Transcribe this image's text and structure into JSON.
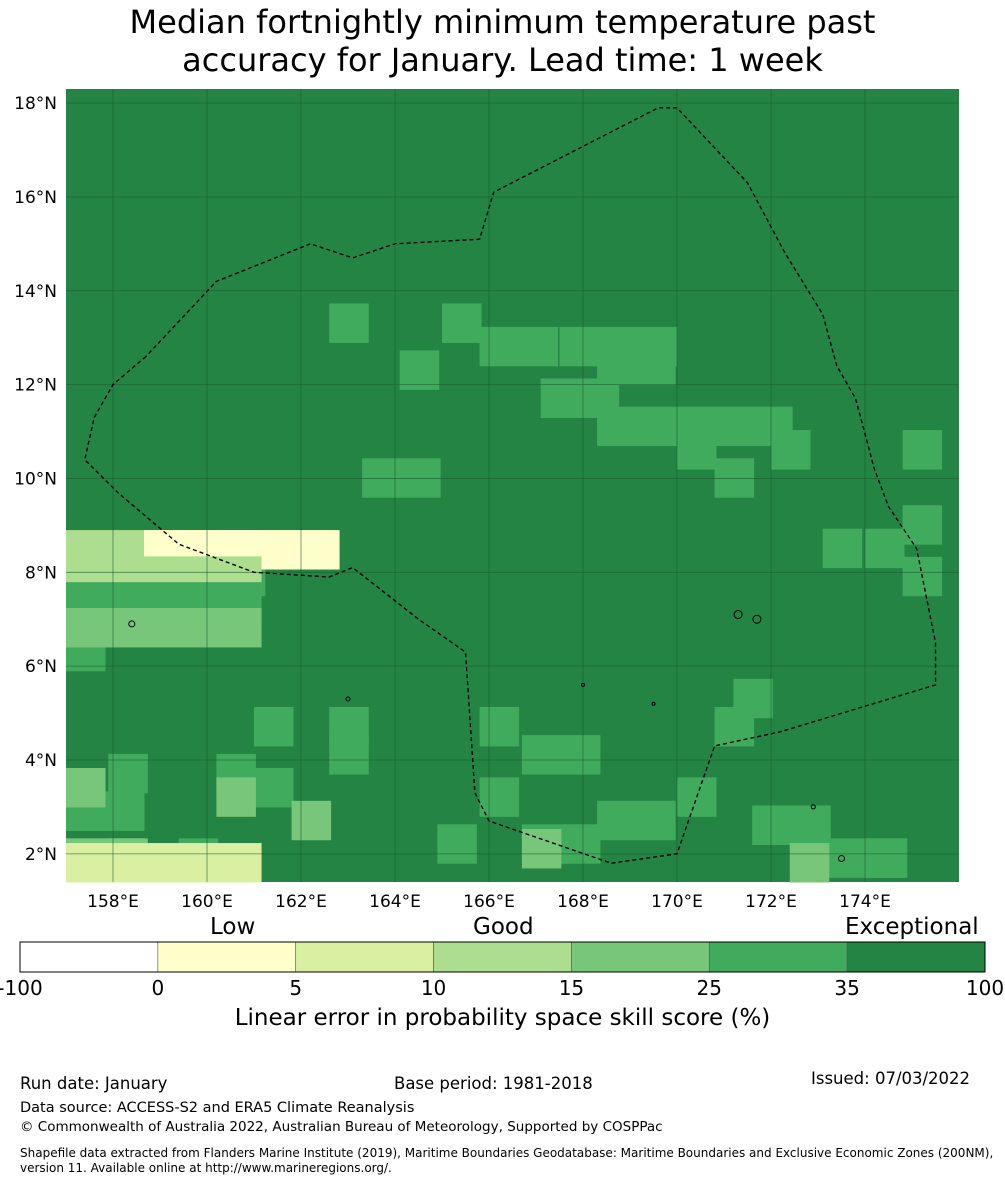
{
  "title_line1": "Median fortnightly minimum temperature past",
  "title_line2": "accuracy for January. Lead time: 1 week",
  "map": {
    "lon_range": [
      157,
      176
    ],
    "lat_range": [
      1.4,
      18.3
    ],
    "lon_ticks": [
      158,
      160,
      162,
      164,
      166,
      168,
      170,
      172,
      174
    ],
    "lon_tick_labels": [
      "158°E",
      "160°E",
      "162°E",
      "164°E",
      "166°E",
      "168°E",
      "170°E",
      "172°E",
      "174°E"
    ],
    "lat_ticks": [
      2,
      4,
      6,
      8,
      10,
      12,
      14,
      16,
      18
    ],
    "lat_tick_labels": [
      "2°N",
      "4°N",
      "6°N",
      "8°N",
      "10°N",
      "12°N",
      "14°N",
      "16°N",
      "18°N"
    ],
    "default_category": 6,
    "grid_cell_deg": 0.83,
    "cells": [
      [
        157,
        8.07,
        3,
        5
      ],
      [
        158.66,
        8.07,
        1,
        5
      ],
      [
        157,
        7.51,
        3,
        5
      ],
      [
        157,
        6.96,
        5,
        5
      ],
      [
        157,
        6.41,
        4,
        5
      ],
      [
        157,
        1.4,
        2,
        5
      ]
    ],
    "eez_boundary": [
      [
        158.7,
        12.6
      ],
      [
        158.0,
        12.0
      ],
      [
        157.6,
        11.3
      ],
      [
        157.4,
        10.4
      ],
      [
        158.1,
        9.7
      ],
      [
        159.4,
        8.6
      ],
      [
        161.0,
        8.0
      ],
      [
        162.6,
        7.9
      ],
      [
        163.1,
        8.1
      ],
      [
        164.5,
        7.0
      ],
      [
        165.5,
        6.3
      ],
      [
        165.7,
        3.3
      ],
      [
        166.0,
        2.7
      ],
      [
        168.6,
        1.8
      ],
      [
        170.0,
        2.0
      ],
      [
        170.8,
        4.3
      ],
      [
        172.2,
        4.6
      ],
      [
        175.5,
        5.6
      ],
      [
        175.5,
        6.5
      ],
      [
        175.1,
        8.5
      ],
      [
        174.5,
        9.4
      ],
      [
        174.2,
        10.2
      ],
      [
        173.8,
        11.7
      ],
      [
        173.4,
        12.4
      ],
      [
        173.1,
        13.5
      ],
      [
        172.3,
        14.8
      ],
      [
        171.5,
        16.3
      ],
      [
        170.0,
        17.9
      ],
      [
        169.6,
        17.9
      ],
      [
        166.1,
        16.1
      ],
      [
        165.8,
        15.1
      ],
      [
        164.0,
        15.0
      ],
      [
        163.1,
        14.7
      ],
      [
        162.2,
        15.0
      ],
      [
        160.2,
        14.2
      ],
      [
        158.7,
        12.6
      ]
    ]
  },
  "colorbar": {
    "group_labels": [
      "Low",
      "Good",
      "Exceptional"
    ],
    "ticks": [
      "-100",
      "0",
      "5",
      "10",
      "15",
      "25",
      "35",
      "100"
    ],
    "colors": [
      "#ffffff",
      "#ffffcc",
      "#d9f0a3",
      "#addd8e",
      "#78c679",
      "#41ab5d",
      "#238443"
    ],
    "title": "Linear error in probability space skill score (%)"
  },
  "footer": {
    "run_date": "Run date: January",
    "base_period": "Base period: 1981-2018",
    "issued": "Issued: 07/03/2022",
    "data_source": "Data source: ACCESS-S2 and ERA5 Climate Reanalysis",
    "copyright": "© Commonwealth of Australia 2022, Australian Bureau of Meteorology, Supported by COSPPac",
    "shapefile_line1": "Shapefile data extracted from Flanders Marine Institute (2019), Maritime Boundaries Geodatabase: Maritime Boundaries and Exclusive Economic Zones (200NM),",
    "shapefile_line2": "version 11. Available online at http://www.marineregions.org/."
  }
}
